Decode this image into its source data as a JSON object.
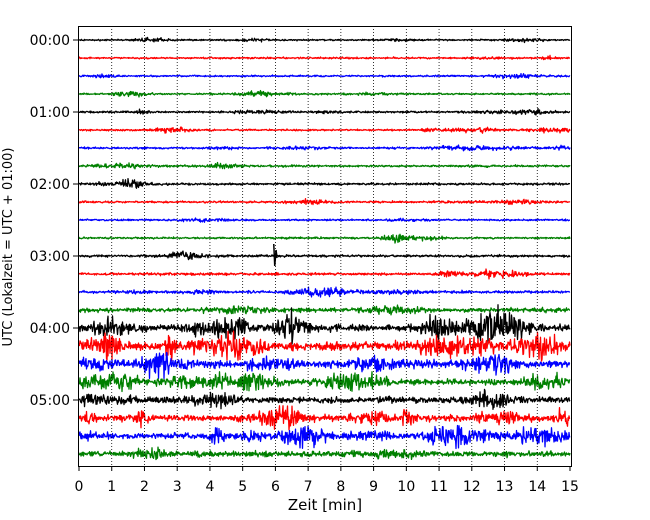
{
  "chart_data": {
    "type": "line",
    "subtype": "helicorder (seismogram drum plot)",
    "xlabel": "Zeit  [min]",
    "ylabel": "UTC (Lokalzeit = UTC + 01:00)",
    "x_ticks": [
      "0",
      "1",
      "2",
      "3",
      "4",
      "5",
      "6",
      "7",
      "8",
      "9",
      "10",
      "11",
      "12",
      "13",
      "14",
      "15"
    ],
    "xlim": [
      0,
      15
    ],
    "y_ticks": [
      "00:00",
      "01:00",
      "02:00",
      "03:00",
      "04:00",
      "05:00"
    ],
    "trace_interval_min": 15,
    "trace_count": 24,
    "trace_colors": [
      "#000000",
      "#ff0000",
      "#0000ff",
      "#008000"
    ],
    "vertical_gridlines": true,
    "gridline_style": "dotted",
    "relative_noise_amplitude": [
      0.8,
      0.9,
      0.9,
      0.9,
      1.0,
      0.9,
      1.0,
      1.0,
      1.1,
      1.0,
      0.9,
      1.0,
      1.2,
      1.3,
      1.4,
      2.2,
      3.4,
      4.2,
      3.6,
      3.0,
      3.2,
      3.2,
      3.1,
      2.8
    ]
  }
}
